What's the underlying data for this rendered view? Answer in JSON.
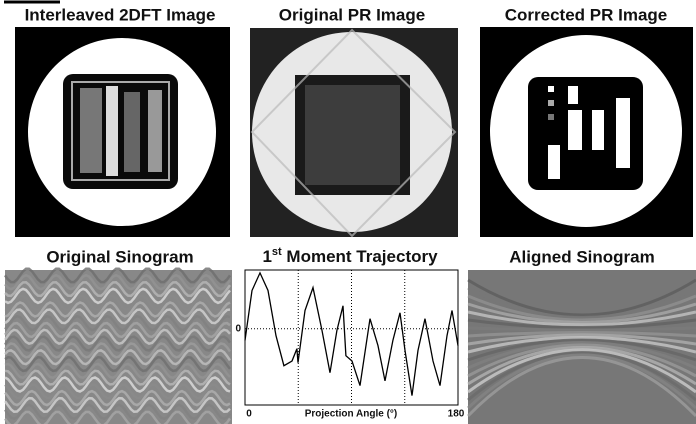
{
  "panels": {
    "titles": [
      "Interleaved 2DFT Image",
      "Original PR Image",
      "Corrected PR Image",
      "Original Sinogram",
      "Aligned Sinogram"
    ]
  },
  "chart_data": {
    "type": "line",
    "title": [
      "1",
      "st",
      " Moment Trajectory"
    ],
    "xlabel": "Projection Angle (°)",
    "x": [
      0,
      5.9,
      12.7,
      19.4,
      26.2,
      32.9,
      39.7,
      43.9,
      44.8,
      50.7,
      57.5,
      65.1,
      71.8,
      77.7,
      82.8,
      85.3,
      90.4,
      97.2,
      105.6,
      112.4,
      118.3,
      125,
      131,
      135.2,
      141.1,
      146.2,
      152.1,
      158.9,
      164.8,
      170.7,
      174.9,
      180
    ],
    "values": [
      -0.2,
      0.65,
      0.95,
      0.65,
      -0.12,
      -0.63,
      -0.55,
      -0.34,
      -0.58,
      0.31,
      0.7,
      -0.03,
      -0.75,
      -0.03,
      0.39,
      -0.46,
      -0.55,
      -0.97,
      0.17,
      -0.29,
      -0.89,
      -0.2,
      0.27,
      -0.37,
      -1.14,
      -0.37,
      0.17,
      -0.55,
      -0.97,
      -0.12,
      0.31,
      -0.29
    ],
    "color": "#000000",
    "xlim": [
      0,
      180
    ],
    "xticks": [
      0,
      180
    ],
    "ylim": [
      -1.3,
      1
    ],
    "yticks": [
      0
    ],
    "x_gridlines": [
      45,
      90,
      135
    ],
    "grid": true
  }
}
